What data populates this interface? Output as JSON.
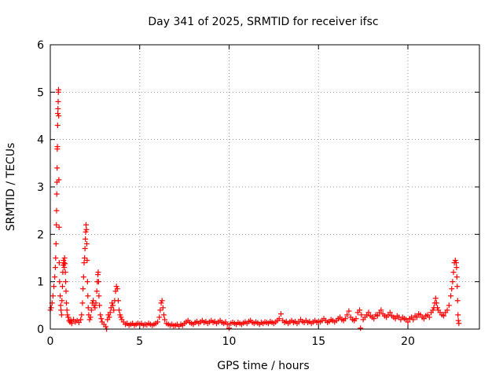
{
  "chart_data": {
    "type": "scatter",
    "title": "Day 341 of 2025, SRMTID for receiver ifsc",
    "xlabel": "GPS time / hours",
    "ylabel": "SRMTID / TECUs",
    "xlim": [
      0,
      24
    ],
    "ylim": [
      0,
      6
    ],
    "xticks": [
      0,
      5,
      10,
      15,
      20
    ],
    "yticks": [
      0,
      1,
      2,
      3,
      4,
      5,
      6
    ],
    "xtick_labels": [
      "0",
      "5",
      "10",
      "15",
      "20"
    ],
    "ytick_labels": [
      "0",
      "1",
      "2",
      "3",
      "4",
      "5",
      "6"
    ],
    "grid": true,
    "marker": "+",
    "color": "#ff0000",
    "series": [
      {
        "name": "SRMTID",
        "points": [
          [
            0.0,
            0.4
          ],
          [
            0.05,
            0.45
          ],
          [
            0.1,
            0.55
          ],
          [
            0.15,
            0.7
          ],
          [
            0.2,
            0.9
          ],
          [
            0.25,
            1.1
          ],
          [
            0.28,
            1.3
          ],
          [
            0.3,
            1.5
          ],
          [
            0.32,
            1.8
          ],
          [
            0.34,
            2.2
          ],
          [
            0.35,
            2.5
          ],
          [
            0.36,
            2.85
          ],
          [
            0.37,
            3.1
          ],
          [
            0.38,
            3.4
          ],
          [
            0.39,
            3.8
          ],
          [
            0.4,
            3.85
          ],
          [
            0.41,
            4.3
          ],
          [
            0.42,
            4.55
          ],
          [
            0.43,
            4.65
          ],
          [
            0.44,
            4.8
          ],
          [
            0.45,
            5.0
          ],
          [
            0.46,
            5.05
          ],
          [
            0.47,
            4.5
          ],
          [
            0.48,
            3.15
          ],
          [
            0.49,
            2.15
          ],
          [
            0.5,
            1.4
          ],
          [
            0.52,
            1.0
          ],
          [
            0.55,
            0.7
          ],
          [
            0.58,
            0.5
          ],
          [
            0.6,
            0.4
          ],
          [
            0.63,
            0.3
          ],
          [
            0.65,
            0.6
          ],
          [
            0.68,
            0.9
          ],
          [
            0.7,
            1.2
          ],
          [
            0.72,
            1.35
          ],
          [
            0.74,
            1.45
          ],
          [
            0.76,
            1.4
          ],
          [
            0.78,
            1.3
          ],
          [
            0.8,
            1.5
          ],
          [
            0.82,
            1.38
          ],
          [
            0.84,
            1.2
          ],
          [
            0.86,
            1.0
          ],
          [
            0.88,
            0.8
          ],
          [
            0.9,
            0.55
          ],
          [
            0.93,
            0.4
          ],
          [
            0.96,
            0.3
          ],
          [
            1.0,
            0.25
          ],
          [
            1.05,
            0.18
          ],
          [
            1.1,
            0.15
          ],
          [
            1.15,
            0.18
          ],
          [
            1.2,
            0.12
          ],
          [
            1.3,
            0.2
          ],
          [
            1.4,
            0.15
          ],
          [
            1.5,
            0.18
          ],
          [
            1.6,
            0.14
          ],
          [
            1.7,
            0.2
          ],
          [
            1.75,
            0.3
          ],
          [
            1.8,
            0.55
          ],
          [
            1.83,
            0.85
          ],
          [
            1.86,
            1.1
          ],
          [
            1.89,
            1.4
          ],
          [
            1.92,
            1.5
          ],
          [
            1.94,
            1.7
          ],
          [
            1.96,
            1.9
          ],
          [
            1.98,
            2.05
          ],
          [
            2.0,
            2.2
          ],
          [
            2.02,
            2.1
          ],
          [
            2.04,
            1.8
          ],
          [
            2.06,
            1.45
          ],
          [
            2.08,
            1.0
          ],
          [
            2.1,
            0.7
          ],
          [
            2.12,
            0.45
          ],
          [
            2.15,
            0.3
          ],
          [
            2.2,
            0.2
          ],
          [
            2.25,
            0.25
          ],
          [
            2.3,
            0.4
          ],
          [
            2.35,
            0.55
          ],
          [
            2.4,
            0.6
          ],
          [
            2.45,
            0.5
          ],
          [
            2.5,
            0.45
          ],
          [
            2.55,
            0.55
          ],
          [
            2.6,
            0.8
          ],
          [
            2.63,
            1.0
          ],
          [
            2.66,
            1.15
          ],
          [
            2.68,
            1.2
          ],
          [
            2.7,
            1.0
          ],
          [
            2.72,
            0.7
          ],
          [
            2.75,
            0.5
          ],
          [
            2.8,
            0.3
          ],
          [
            2.85,
            0.22
          ],
          [
            2.9,
            0.15
          ],
          [
            3.0,
            0.1
          ],
          [
            3.1,
            0.05
          ],
          [
            3.15,
            0.0
          ],
          [
            3.2,
            0.2
          ],
          [
            3.25,
            0.3
          ],
          [
            3.3,
            0.25
          ],
          [
            3.35,
            0.35
          ],
          [
            3.4,
            0.45
          ],
          [
            3.45,
            0.55
          ],
          [
            3.5,
            0.5
          ],
          [
            3.55,
            0.4
          ],
          [
            3.6,
            0.6
          ],
          [
            3.65,
            0.8
          ],
          [
            3.7,
            0.9
          ],
          [
            3.75,
            0.85
          ],
          [
            3.8,
            0.6
          ],
          [
            3.85,
            0.4
          ],
          [
            3.9,
            0.3
          ],
          [
            3.95,
            0.25
          ],
          [
            4.0,
            0.2
          ],
          [
            4.1,
            0.15
          ],
          [
            4.2,
            0.1
          ],
          [
            4.3,
            0.12
          ],
          [
            4.4,
            0.08
          ],
          [
            4.5,
            0.1
          ],
          [
            4.6,
            0.12
          ],
          [
            4.7,
            0.08
          ],
          [
            4.8,
            0.1
          ],
          [
            4.9,
            0.12
          ],
          [
            5.0,
            0.1
          ],
          [
            5.1,
            0.12
          ],
          [
            5.2,
            0.08
          ],
          [
            5.3,
            0.1
          ],
          [
            5.4,
            0.09
          ],
          [
            5.5,
            0.12
          ],
          [
            5.6,
            0.1
          ],
          [
            5.7,
            0.08
          ],
          [
            5.8,
            0.1
          ],
          [
            5.9,
            0.12
          ],
          [
            6.0,
            0.15
          ],
          [
            6.1,
            0.25
          ],
          [
            6.15,
            0.4
          ],
          [
            6.2,
            0.55
          ],
          [
            6.25,
            0.6
          ],
          [
            6.3,
            0.45
          ],
          [
            6.35,
            0.3
          ],
          [
            6.4,
            0.2
          ],
          [
            6.5,
            0.12
          ],
          [
            6.6,
            0.1
          ],
          [
            6.7,
            0.08
          ],
          [
            6.8,
            0.1
          ],
          [
            6.9,
            0.07
          ],
          [
            7.0,
            0.08
          ],
          [
            7.1,
            0.1
          ],
          [
            7.2,
            0.06
          ],
          [
            7.3,
            0.1
          ],
          [
            7.4,
            0.08
          ],
          [
            7.5,
            0.12
          ],
          [
            7.6,
            0.15
          ],
          [
            7.7,
            0.18
          ],
          [
            7.8,
            0.14
          ],
          [
            7.9,
            0.12
          ],
          [
            8.0,
            0.1
          ],
          [
            8.1,
            0.14
          ],
          [
            8.2,
            0.16
          ],
          [
            8.3,
            0.12
          ],
          [
            8.4,
            0.15
          ],
          [
            8.5,
            0.18
          ],
          [
            8.6,
            0.14
          ],
          [
            8.7,
            0.16
          ],
          [
            8.8,
            0.12
          ],
          [
            8.9,
            0.15
          ],
          [
            9.0,
            0.18
          ],
          [
            9.1,
            0.14
          ],
          [
            9.2,
            0.16
          ],
          [
            9.3,
            0.12
          ],
          [
            9.4,
            0.15
          ],
          [
            9.5,
            0.18
          ],
          [
            9.6,
            0.14
          ],
          [
            9.7,
            0.12
          ],
          [
            9.8,
            0.15
          ],
          [
            9.9,
            0.1
          ],
          [
            10.0,
            0.02
          ],
          [
            10.1,
            0.12
          ],
          [
            10.2,
            0.14
          ],
          [
            10.3,
            0.12
          ],
          [
            10.4,
            0.1
          ],
          [
            10.5,
            0.14
          ],
          [
            10.6,
            0.12
          ],
          [
            10.7,
            0.1
          ],
          [
            10.8,
            0.13
          ],
          [
            10.9,
            0.15
          ],
          [
            11.0,
            0.12
          ],
          [
            11.1,
            0.16
          ],
          [
            11.2,
            0.18
          ],
          [
            11.3,
            0.14
          ],
          [
            11.4,
            0.12
          ],
          [
            11.5,
            0.15
          ],
          [
            11.6,
            0.13
          ],
          [
            11.7,
            0.1
          ],
          [
            11.8,
            0.14
          ],
          [
            11.9,
            0.12
          ],
          [
            12.0,
            0.15
          ],
          [
            12.1,
            0.14
          ],
          [
            12.2,
            0.12
          ],
          [
            12.3,
            0.16
          ],
          [
            12.4,
            0.14
          ],
          [
            12.5,
            0.12
          ],
          [
            12.6,
            0.15
          ],
          [
            12.7,
            0.18
          ],
          [
            12.8,
            0.22
          ],
          [
            12.9,
            0.32
          ],
          [
            13.0,
            0.18
          ],
          [
            13.1,
            0.14
          ],
          [
            13.2,
            0.16
          ],
          [
            13.3,
            0.12
          ],
          [
            13.4,
            0.15
          ],
          [
            13.5,
            0.18
          ],
          [
            13.6,
            0.14
          ],
          [
            13.7,
            0.16
          ],
          [
            13.8,
            0.12
          ],
          [
            13.9,
            0.15
          ],
          [
            14.0,
            0.2
          ],
          [
            14.1,
            0.16
          ],
          [
            14.2,
            0.14
          ],
          [
            14.3,
            0.18
          ],
          [
            14.4,
            0.14
          ],
          [
            14.5,
            0.16
          ],
          [
            14.6,
            0.12
          ],
          [
            14.7,
            0.15
          ],
          [
            14.8,
            0.18
          ],
          [
            14.9,
            0.14
          ],
          [
            15.0,
            0.16
          ],
          [
            15.1,
            0.15
          ],
          [
            15.2,
            0.18
          ],
          [
            15.3,
            0.22
          ],
          [
            15.4,
            0.18
          ],
          [
            15.5,
            0.14
          ],
          [
            15.6,
            0.16
          ],
          [
            15.7,
            0.2
          ],
          [
            15.8,
            0.18
          ],
          [
            15.9,
            0.15
          ],
          [
            16.0,
            0.18
          ],
          [
            16.1,
            0.22
          ],
          [
            16.2,
            0.25
          ],
          [
            16.3,
            0.2
          ],
          [
            16.4,
            0.18
          ],
          [
            16.5,
            0.22
          ],
          [
            16.6,
            0.3
          ],
          [
            16.7,
            0.38
          ],
          [
            16.8,
            0.25
          ],
          [
            16.9,
            0.2
          ],
          [
            17.0,
            0.18
          ],
          [
            17.1,
            0.22
          ],
          [
            17.2,
            0.35
          ],
          [
            17.3,
            0.4
          ],
          [
            17.35,
            0.02
          ],
          [
            17.4,
            0.3
          ],
          [
            17.5,
            0.2
          ],
          [
            17.6,
            0.25
          ],
          [
            17.7,
            0.3
          ],
          [
            17.8,
            0.35
          ],
          [
            17.9,
            0.28
          ],
          [
            18.0,
            0.25
          ],
          [
            18.1,
            0.22
          ],
          [
            18.2,
            0.3
          ],
          [
            18.3,
            0.28
          ],
          [
            18.4,
            0.35
          ],
          [
            18.5,
            0.4
          ],
          [
            18.6,
            0.32
          ],
          [
            18.7,
            0.28
          ],
          [
            18.8,
            0.25
          ],
          [
            18.9,
            0.3
          ],
          [
            19.0,
            0.35
          ],
          [
            19.1,
            0.28
          ],
          [
            19.2,
            0.25
          ],
          [
            19.3,
            0.22
          ],
          [
            19.4,
            0.28
          ],
          [
            19.5,
            0.25
          ],
          [
            19.6,
            0.2
          ],
          [
            19.7,
            0.25
          ],
          [
            19.8,
            0.22
          ],
          [
            19.9,
            0.2
          ],
          [
            20.0,
            0.15
          ],
          [
            20.1,
            0.22
          ],
          [
            20.2,
            0.25
          ],
          [
            20.3,
            0.2
          ],
          [
            20.4,
            0.28
          ],
          [
            20.5,
            0.25
          ],
          [
            20.6,
            0.32
          ],
          [
            20.7,
            0.3
          ],
          [
            20.8,
            0.25
          ],
          [
            20.9,
            0.22
          ],
          [
            21.0,
            0.28
          ],
          [
            21.1,
            0.3
          ],
          [
            21.2,
            0.25
          ],
          [
            21.3,
            0.35
          ],
          [
            21.4,
            0.4
          ],
          [
            21.45,
            0.45
          ],
          [
            21.5,
            0.55
          ],
          [
            21.55,
            0.65
          ],
          [
            21.6,
            0.55
          ],
          [
            21.65,
            0.45
          ],
          [
            21.7,
            0.4
          ],
          [
            21.8,
            0.35
          ],
          [
            21.9,
            0.3
          ],
          [
            22.0,
            0.28
          ],
          [
            22.1,
            0.35
          ],
          [
            22.2,
            0.4
          ],
          [
            22.3,
            0.5
          ],
          [
            22.4,
            0.7
          ],
          [
            22.45,
            0.85
          ],
          [
            22.5,
            1.0
          ],
          [
            22.55,
            1.2
          ],
          [
            22.6,
            1.4
          ],
          [
            22.65,
            1.45
          ],
          [
            22.7,
            1.4
          ],
          [
            22.72,
            1.3
          ],
          [
            22.74,
            1.1
          ],
          [
            22.76,
            0.9
          ],
          [
            22.78,
            0.6
          ],
          [
            22.8,
            0.3
          ],
          [
            22.82,
            0.18
          ],
          [
            22.85,
            0.12
          ]
        ]
      }
    ]
  }
}
